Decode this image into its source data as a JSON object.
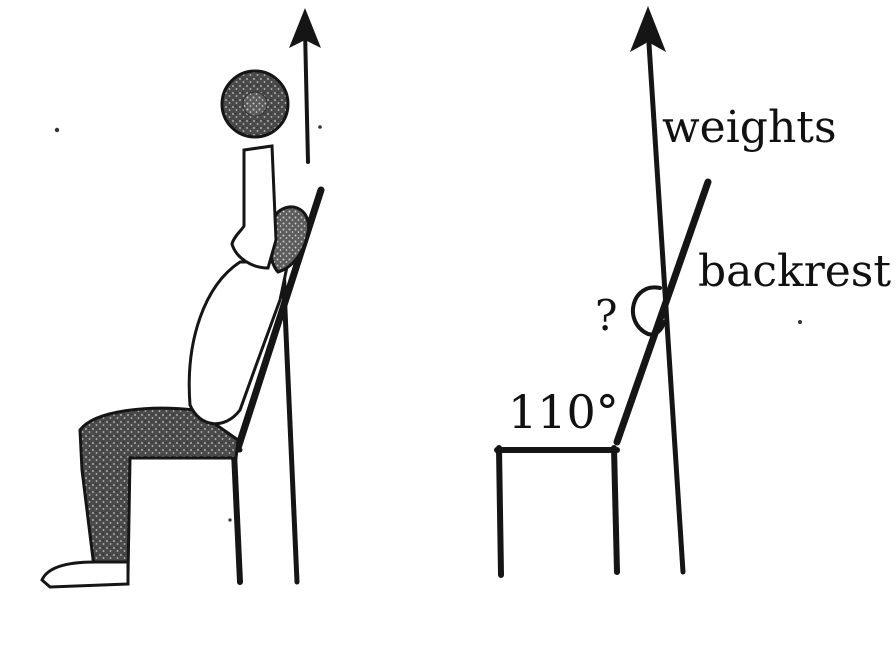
{
  "labels": {
    "weights": "weights",
    "backrest": "backrest",
    "unknown_angle": "?",
    "known_angle": "110°"
  },
  "colors": {
    "ink": "#151515",
    "dark_fill": "#3a3a3a",
    "light_fill": "#ffffff"
  }
}
